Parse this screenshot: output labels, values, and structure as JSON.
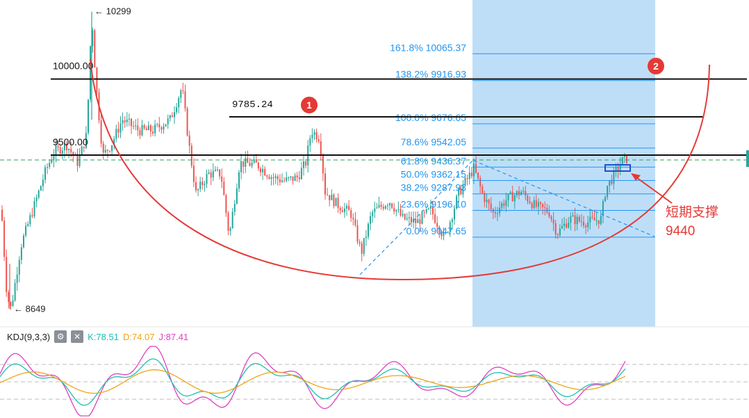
{
  "colors": {
    "bull": "#26a69a",
    "bear": "#ef5350",
    "fib_zone": "#bbdcf8",
    "fib_line": "#2196f3",
    "fib_text": "#2196f3",
    "arc": "#e53935",
    "k_line": "#1fbfb0",
    "d_line": "#f0a31a",
    "j_line": "#e040c0",
    "support_box": "#1f4fd1",
    "dashed_level": "#2e9e5a"
  },
  "chart_data": [
    {
      "type": "candlestick",
      "title": "",
      "price_range": [
        8600,
        10320
      ],
      "extreme_labels": [
        {
          "text": "← 10299",
          "price": 10299
        },
        {
          "text": "← 8649",
          "price": 8649
        }
      ],
      "horizontal_levels": [
        {
          "label": "10000.00",
          "price": 9925
        },
        {
          "label": "9785.24",
          "price": 9715
        },
        {
          "label": "9500.00",
          "price": 9503
        }
      ],
      "dashed_level_price": 9476,
      "fibonacci": {
        "levels": [
          {
            "label": "161.8% 10065.37",
            "price": 10065.37
          },
          {
            "label": "138.2% 9916.93",
            "price": 9916.93
          },
          {
            "label": "100.0% 9676.65",
            "price": 9676.65
          },
          {
            "label": "78.6% 9542.05",
            "price": 9542.05
          },
          {
            "label": "61.8% 9436.37",
            "price": 9436.37
          },
          {
            "label": "50.0% 9362.15",
            "price": 9362.15
          },
          {
            "label": "38.2% 9287.93",
            "price": 9287.93
          },
          {
            "label": "23.6% 9196.10",
            "price": 9196.1
          },
          {
            "label": "0.0% 9047.65",
            "price": 9047.65
          }
        ]
      },
      "markers": [
        {
          "label": "1"
        },
        {
          "label": "2"
        }
      ],
      "annotation": {
        "line1": "短期支撑",
        "line2": "9440"
      }
    },
    {
      "type": "line",
      "indicator": "KDJ(9,3,3)",
      "series": [
        {
          "name": "K",
          "value": "K:78.51"
        },
        {
          "name": "D",
          "value": "D:74.07"
        },
        {
          "name": "J",
          "value": "J:87.41"
        }
      ]
    }
  ],
  "kdj_toolbar": {
    "title": "KDJ(9,3,3)",
    "k": "K:78.51",
    "d": "D:74.07",
    "j": "J:87.41",
    "settings_icon": "gear-icon",
    "close_icon": "close-icon"
  }
}
